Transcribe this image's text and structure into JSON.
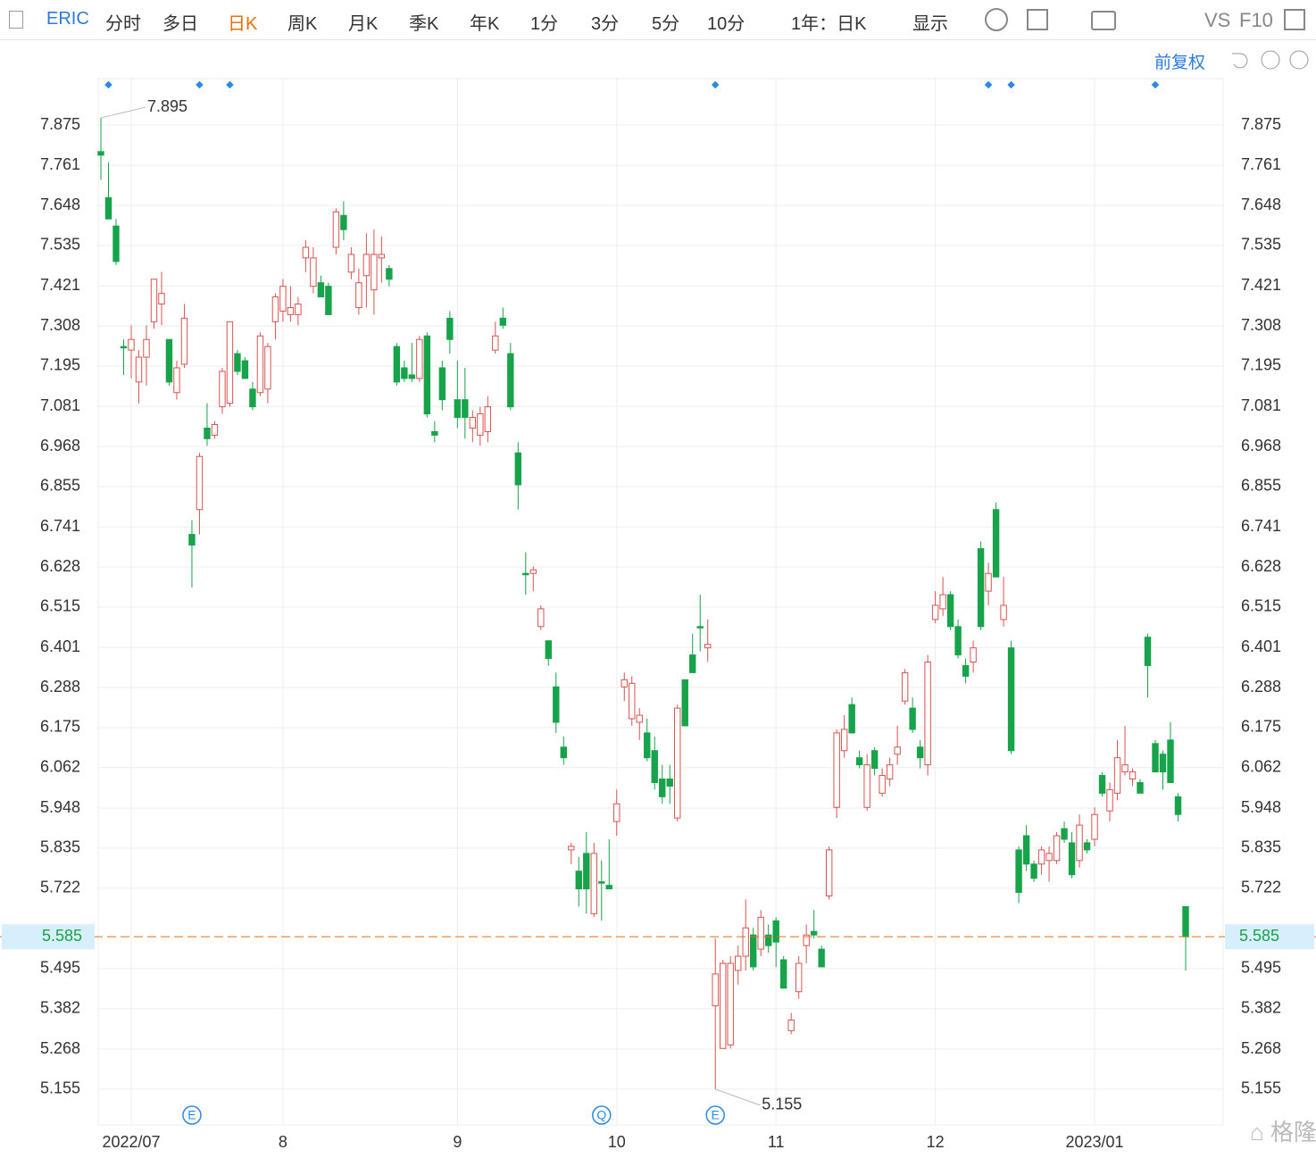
{
  "toolbar": {
    "symbol": "ERIC",
    "periods": [
      "分时",
      "多日",
      "日K",
      "周K",
      "月K",
      "季K",
      "年K",
      "1分",
      "3分",
      "5分",
      "10分"
    ],
    "active_period": 2,
    "range": "1年：日K",
    "display": "显示",
    "compare": "VS",
    "f10": "F10"
  },
  "adjust": "前复权",
  "chart_data": {
    "type": "candlestick",
    "open": [
      7.8,
      7.67,
      7.59,
      7.25,
      7.24,
      7.15,
      7.22,
      7.32,
      7.37,
      7.27,
      7.12,
      7.2,
      6.72,
      6.79,
      7.02,
      7.0,
      7.08,
      7.09,
      7.23,
      7.21,
      7.13,
      7.12,
      7.13,
      7.32,
      7.35,
      7.34,
      7.34,
      7.5,
      7.42,
      7.43,
      7.42,
      7.53,
      7.62,
      7.46,
      7.36,
      7.45,
      7.41,
      7.5,
      7.47,
      7.25,
      7.19,
      7.17,
      7.16,
      7.28,
      7.01,
      7.19,
      7.33,
      7.1,
      7.1,
      7.02,
      7.0,
      7.01,
      7.24,
      7.33,
      7.23,
      6.95,
      6.61,
      6.61,
      6.46,
      6.42,
      6.29,
      6.12,
      5.83,
      5.77,
      5.82,
      5.65,
      5.74,
      5.73,
      5.91,
      6.29,
      6.2,
      6.19,
      6.16,
      6.11,
      6.03,
      6.03,
      5.92,
      6.31,
      6.38,
      6.46,
      6.4,
      5.39,
      5.27,
      5.28,
      5.49,
      5.53,
      5.59,
      5.55,
      5.59,
      5.63,
      5.52,
      5.32,
      5.43,
      5.56,
      5.6,
      5.55,
      5.7,
      5.95,
      6.11,
      6.24,
      6.09,
      5.95,
      6.11,
      5.99,
      6.03,
      6.1,
      6.25,
      6.23,
      6.12,
      6.07,
      6.48,
      6.51,
      6.55,
      6.46,
      6.35,
      6.36,
      6.68,
      6.56,
      6.79,
      6.48,
      6.4,
      5.83,
      5.87,
      5.79,
      5.79,
      5.8,
      5.8,
      5.89,
      5.85,
      5.8,
      5.85,
      5.86,
      6.04,
      5.94,
      5.99,
      6.05,
      6.03,
      6.02,
      6.43,
      6.13,
      6.1,
      6.14,
      5.98,
      5.67
    ],
    "high": [
      7.895,
      7.77,
      7.61,
      7.27,
      7.31,
      7.24,
      7.31,
      7.44,
      7.46,
      7.27,
      7.21,
      7.37,
      6.76,
      6.95,
      7.09,
      7.04,
      7.19,
      7.32,
      7.24,
      7.22,
      7.15,
      7.29,
      7.26,
      7.4,
      7.44,
      7.42,
      7.39,
      7.55,
      7.53,
      7.45,
      7.43,
      7.64,
      7.66,
      7.53,
      7.47,
      7.57,
      7.58,
      7.56,
      7.48,
      7.26,
      7.21,
      7.26,
      7.28,
      7.29,
      7.04,
      7.21,
      7.35,
      7.21,
      7.19,
      7.07,
      7.08,
      7.11,
      7.32,
      7.36,
      7.26,
      6.98,
      6.67,
      6.63,
      6.52,
      6.42,
      6.33,
      6.15,
      5.85,
      5.81,
      5.88,
      5.85,
      5.8,
      5.86,
      6.0,
      6.33,
      6.32,
      6.23,
      6.2,
      6.15,
      6.07,
      6.07,
      6.24,
      6.31,
      6.44,
      6.55,
      6.48,
      5.58,
      5.52,
      5.53,
      5.56,
      5.69,
      5.61,
      5.66,
      5.62,
      5.64,
      5.53,
      5.37,
      5.53,
      5.62,
      5.66,
      5.56,
      5.84,
      6.17,
      6.21,
      6.26,
      6.11,
      6.1,
      6.12,
      6.06,
      6.09,
      6.18,
      6.34,
      6.26,
      6.14,
      6.38,
      6.56,
      6.6,
      6.56,
      6.48,
      6.37,
      6.42,
      6.7,
      6.64,
      6.81,
      6.6,
      6.42,
      5.84,
      5.9,
      5.8,
      5.84,
      5.84,
      5.88,
      5.91,
      5.88,
      5.93,
      5.86,
      5.95,
      6.05,
      6.02,
      6.14,
      6.18,
      6.06,
      6.03,
      6.44,
      6.14,
      6.11,
      6.19,
      5.99,
      5.67
    ],
    "low": [
      7.72,
      7.61,
      7.48,
      7.17,
      7.16,
      7.09,
      7.14,
      7.3,
      7.31,
      7.14,
      7.1,
      7.19,
      6.57,
      6.72,
      6.97,
      6.99,
      7.06,
      7.08,
      7.17,
      7.16,
      7.07,
      7.11,
      7.09,
      7.27,
      7.32,
      7.32,
      7.31,
      7.46,
      7.4,
      7.39,
      7.34,
      7.51,
      7.55,
      7.44,
      7.34,
      7.36,
      7.34,
      7.43,
      7.42,
      7.14,
      7.15,
      7.15,
      7.15,
      7.05,
      6.98,
      7.07,
      7.23,
      7.02,
      6.99,
      6.98,
      6.97,
      6.98,
      7.23,
      7.3,
      7.07,
      6.79,
      6.55,
      6.56,
      6.45,
      6.35,
      6.16,
      6.07,
      5.79,
      5.67,
      5.65,
      5.64,
      5.63,
      5.72,
      5.87,
      6.25,
      6.18,
      6.14,
      6.08,
      6.0,
      5.96,
      5.96,
      5.91,
      6.18,
      6.33,
      6.39,
      6.36,
      5.155,
      5.27,
      5.27,
      5.45,
      5.49,
      5.49,
      5.53,
      5.54,
      5.5,
      5.44,
      5.31,
      5.41,
      5.51,
      5.58,
      5.5,
      5.69,
      5.92,
      6.09,
      6.16,
      6.06,
      5.94,
      6.04,
      5.98,
      6.01,
      6.07,
      6.24,
      6.16,
      6.06,
      6.04,
      6.47,
      6.49,
      6.45,
      6.37,
      6.3,
      6.33,
      6.45,
      6.52,
      6.6,
      6.46,
      6.1,
      5.68,
      5.77,
      5.74,
      5.76,
      5.74,
      5.79,
      5.85,
      5.75,
      5.78,
      5.82,
      5.84,
      5.98,
      5.91,
      5.97,
      6.04,
      6.01,
      5.99,
      6.26,
      6.05,
      6.0,
      6.02,
      5.91,
      5.49
    ],
    "close": [
      7.79,
      7.61,
      7.49,
      7.25,
      7.27,
      7.22,
      7.27,
      7.44,
      7.4,
      7.15,
      7.19,
      7.33,
      6.69,
      6.94,
      6.99,
      7.03,
      7.18,
      7.32,
      7.18,
      7.16,
      7.08,
      7.28,
      7.25,
      7.39,
      7.42,
      7.36,
      7.37,
      7.53,
      7.5,
      7.39,
      7.34,
      7.63,
      7.58,
      7.51,
      7.43,
      7.51,
      7.51,
      7.51,
      7.44,
      7.15,
      7.16,
      7.16,
      7.27,
      7.06,
      7.0,
      7.1,
      7.27,
      7.05,
      7.05,
      7.05,
      7.06,
      7.08,
      7.28,
      7.31,
      7.08,
      6.86,
      6.61,
      6.62,
      6.51,
      6.37,
      6.19,
      6.09,
      5.84,
      5.72,
      5.72,
      5.82,
      5.74,
      5.72,
      5.96,
      6.31,
      6.3,
      6.21,
      6.09,
      6.02,
      5.98,
      6.01,
      6.23,
      6.18,
      6.33,
      6.46,
      6.41,
      5.48,
      5.51,
      5.51,
      5.53,
      5.61,
      5.5,
      5.64,
      5.56,
      5.57,
      5.44,
      5.35,
      5.51,
      5.59,
      5.59,
      5.5,
      5.83,
      6.16,
      6.17,
      6.16,
      6.07,
      6.07,
      6.06,
      6.04,
      6.07,
      6.12,
      6.33,
      6.17,
      6.09,
      6.36,
      6.52,
      6.55,
      6.46,
      6.38,
      6.32,
      6.4,
      6.46,
      6.61,
      6.6,
      6.52,
      6.11,
      5.71,
      5.79,
      5.75,
      5.83,
      5.82,
      5.87,
      5.86,
      5.76,
      5.9,
      5.83,
      5.93,
      5.99,
      6.0,
      6.09,
      6.07,
      6.05,
      5.99,
      6.35,
      6.05,
      6.05,
      6.02,
      5.93,
      5.585
    ],
    "up_color": "#d9534f",
    "down_color": "#16a34a",
    "ylim": [
      5.054,
      8.006
    ],
    "yticks": [
      5.155,
      5.268,
      5.382,
      5.495,
      5.722,
      5.835,
      5.948,
      6.062,
      6.175,
      6.288,
      6.401,
      6.515,
      6.628,
      6.741,
      6.855,
      6.968,
      7.081,
      7.195,
      7.308,
      7.421,
      7.535,
      7.648,
      7.761,
      7.875
    ],
    "xticks": [
      {
        "value": 4,
        "label": "2022/07"
      },
      {
        "value": 24,
        "label": "8"
      },
      {
        "value": 47,
        "label": "9"
      },
      {
        "value": 68,
        "label": "10"
      },
      {
        "value": 89,
        "label": "11"
      },
      {
        "value": 110,
        "label": "12"
      },
      {
        "value": 131,
        "label": "2023/01"
      }
    ],
    "max_label": 7.895,
    "min_label": 5.155,
    "last_price": 5.585,
    "markers": [
      1,
      13,
      17,
      81,
      117,
      120,
      139
    ],
    "events": [
      {
        "index": 12,
        "label": "E"
      },
      {
        "index": 66,
        "label": "Q"
      },
      {
        "index": 81,
        "label": "E"
      }
    ],
    "grid": true
  }
}
